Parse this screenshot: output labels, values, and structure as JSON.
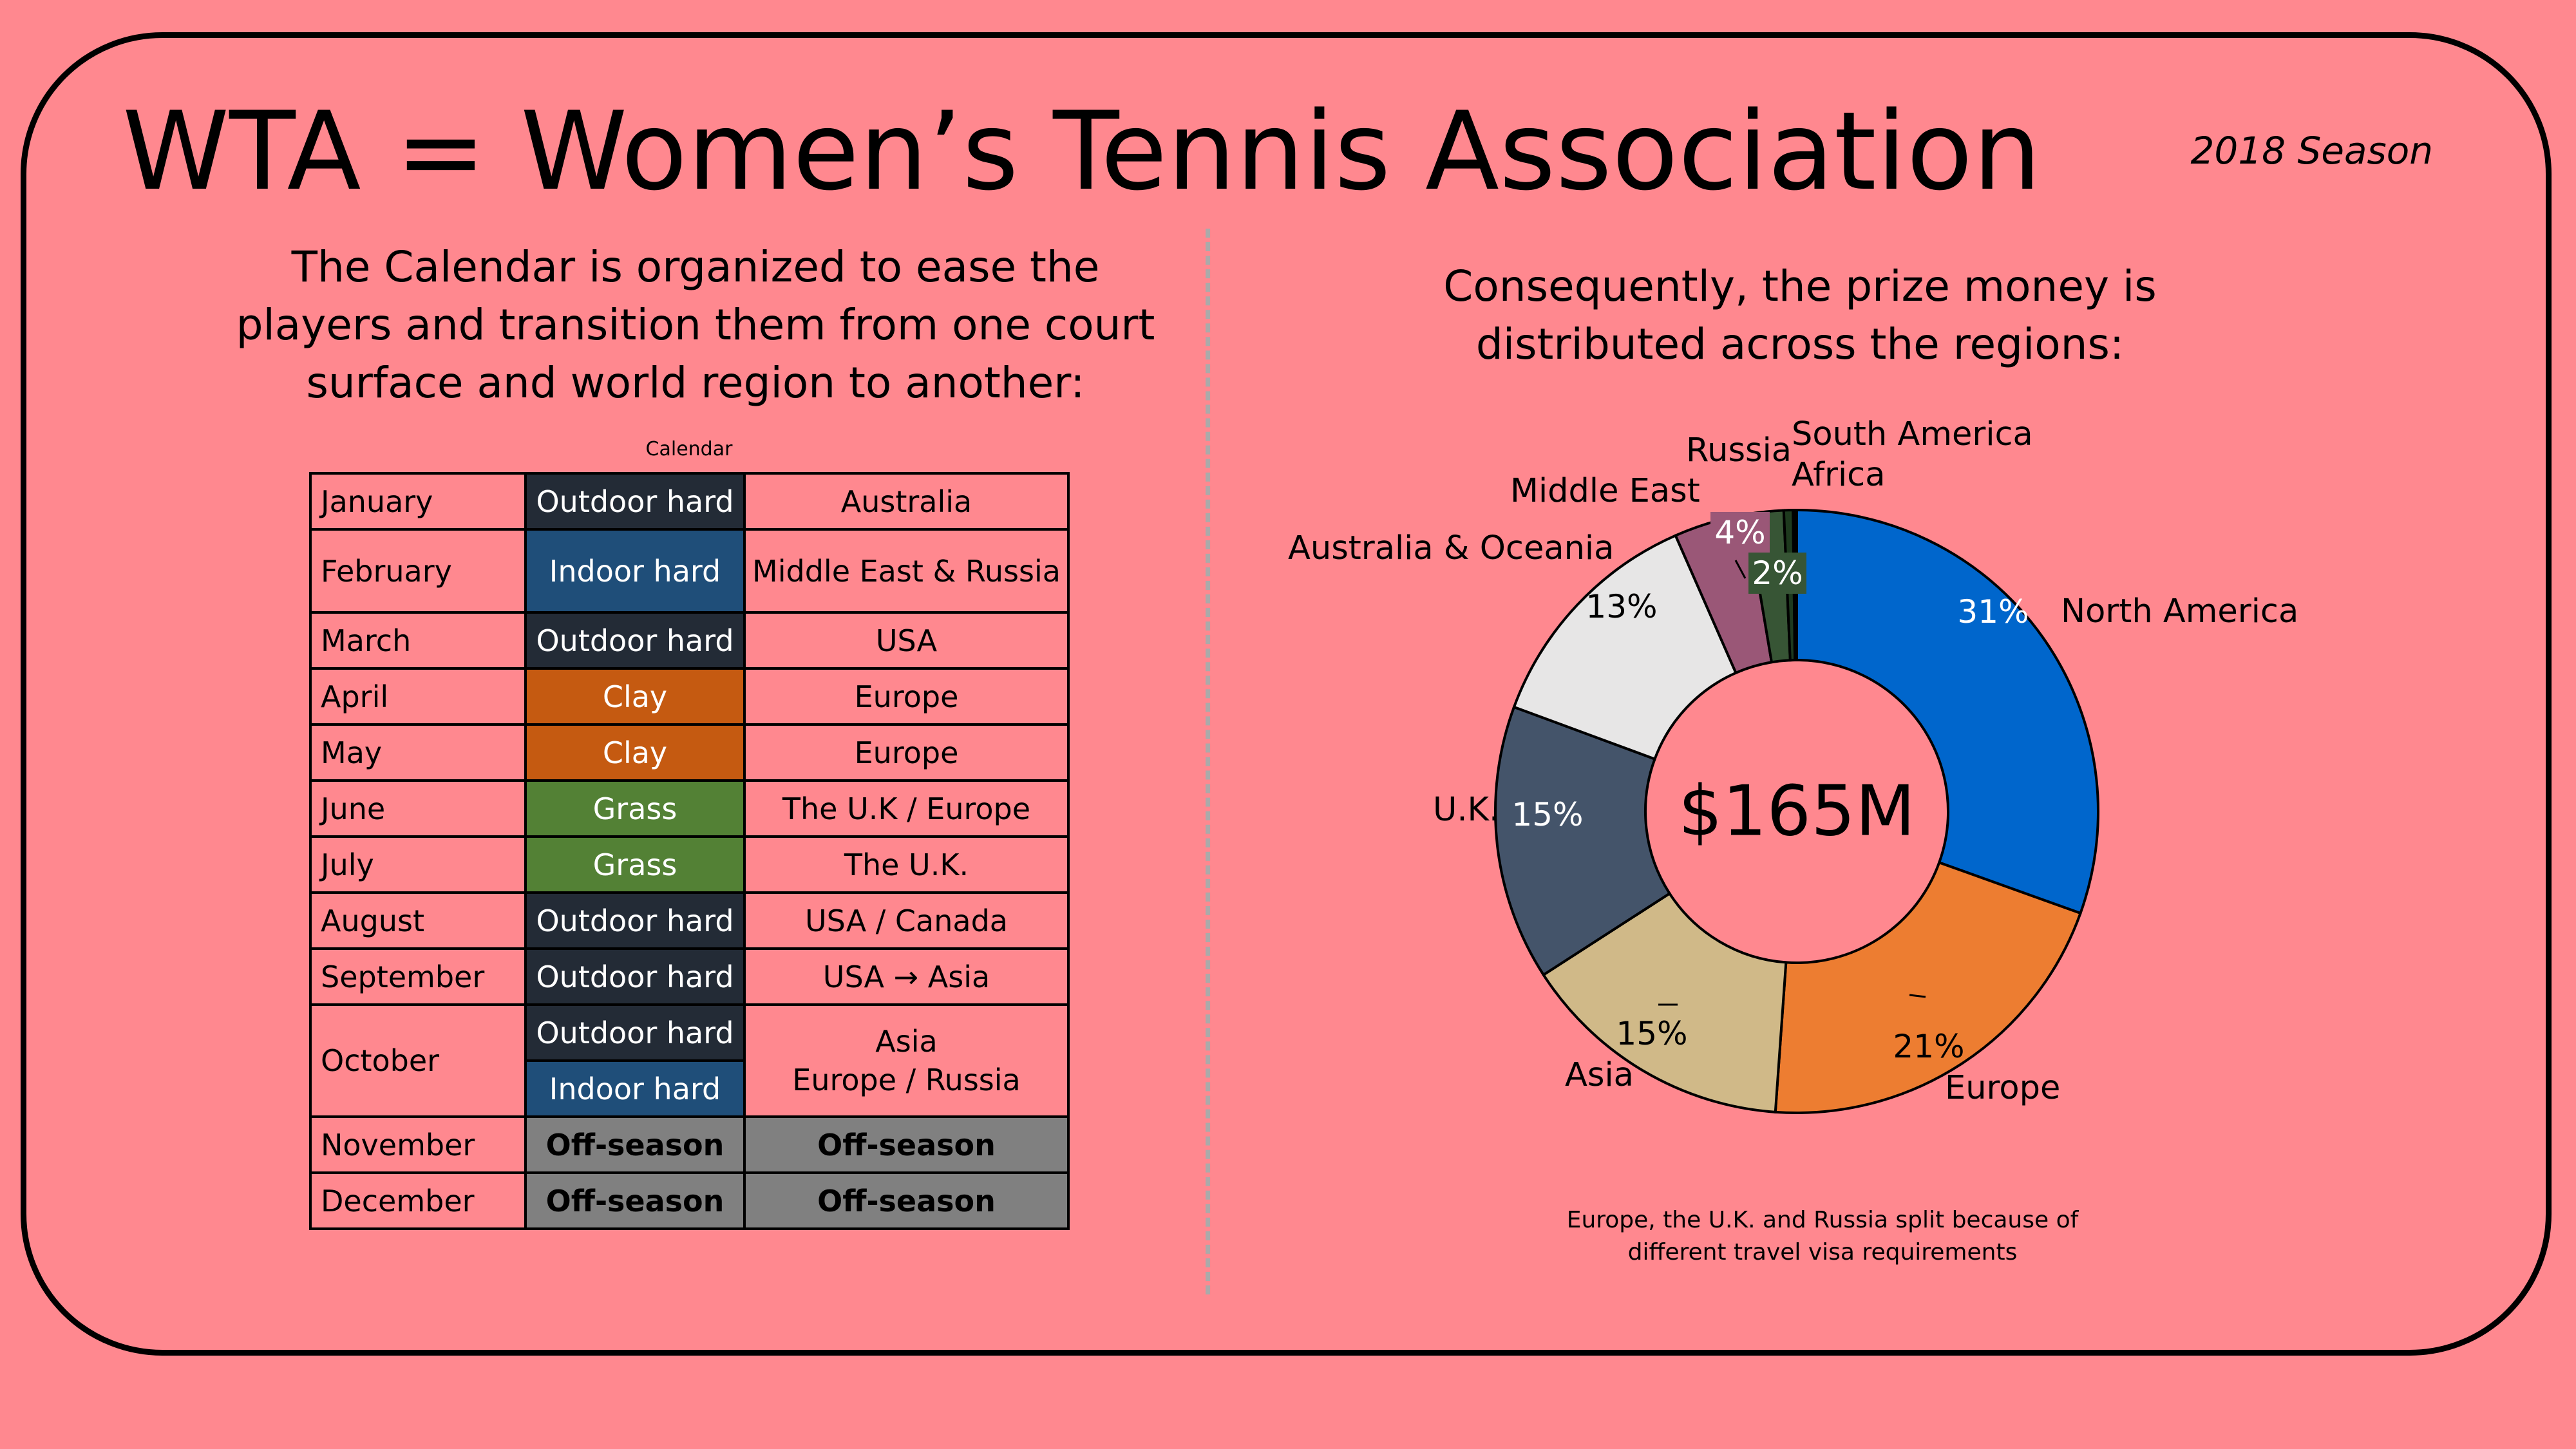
{
  "header": {
    "title": "WTA = Women’s Tennis Association",
    "season": "2018 Season"
  },
  "left": {
    "intro": "The Calendar is organized to ease the players and transition them from one court surface and world region to another:",
    "caption": "Calendar"
  },
  "calendar": {
    "rows": [
      {
        "month": "January",
        "surfaces": [
          {
            "text": "Outdoor hard",
            "color": "#232B36"
          }
        ],
        "region": "Australia"
      },
      {
        "month": "February",
        "surfaces": [
          {
            "text": "Indoor hard",
            "color": "#1F4E79"
          }
        ],
        "region": "Middle East & Russia"
      },
      {
        "month": "March",
        "surfaces": [
          {
            "text": "Outdoor hard",
            "color": "#232B36"
          }
        ],
        "region": "USA"
      },
      {
        "month": "April",
        "surfaces": [
          {
            "text": "Clay",
            "color": "#C55A11"
          }
        ],
        "region": "Europe"
      },
      {
        "month": "May",
        "surfaces": [
          {
            "text": "Clay",
            "color": "#C55A11"
          }
        ],
        "region": "Europe"
      },
      {
        "month": "June",
        "surfaces": [
          {
            "text": "Grass",
            "color": "#538135"
          }
        ],
        "region": "The U.K / Europe"
      },
      {
        "month": "July",
        "surfaces": [
          {
            "text": "Grass",
            "color": "#538135"
          }
        ],
        "region": "The U.K."
      },
      {
        "month": "August",
        "surfaces": [
          {
            "text": "Outdoor hard",
            "color": "#232B36"
          }
        ],
        "region": "USA / Canada"
      },
      {
        "month": "September",
        "surfaces": [
          {
            "text": "Outdoor hard",
            "color": "#232B36"
          }
        ],
        "region": "USA → Asia"
      },
      {
        "month": "October",
        "surfaces": [
          {
            "text": "Outdoor hard",
            "color": "#232B36"
          },
          {
            "text": "Indoor hard",
            "color": "#1F4E79"
          }
        ],
        "region_lines": [
          "Asia",
          "Europe / Russia"
        ]
      },
      {
        "month": "November",
        "surfaces": [
          {
            "text": "Off-season",
            "offseason": true
          }
        ],
        "region": "Off-season",
        "offseason": true
      },
      {
        "month": "December",
        "surfaces": [
          {
            "text": "Off-season",
            "offseason": true
          }
        ],
        "region": "Off-season",
        "offseason": true
      }
    ]
  },
  "right": {
    "intro": "Consequently, the prize money is distributed across the regions:",
    "note": "Europe, the U.K. and Russia split because of different  travel visa requirements"
  },
  "chart_data": {
    "type": "pie",
    "center_label": "$165M",
    "slices": [
      {
        "region": "North America",
        "value": 31,
        "label": "31%",
        "color": "#0066CC",
        "label_color": "#FFFFFF"
      },
      {
        "region": "Europe",
        "value": 21,
        "label": "21%",
        "color": "#ED7D31",
        "label_color": "#000000"
      },
      {
        "region": "Asia",
        "value": 15,
        "label": "15%",
        "color": "#D0B988",
        "label_color": "#000000"
      },
      {
        "region": "U.K.",
        "value": 15,
        "label": "15%",
        "color": "#44546A",
        "label_color": "#FFFFFF"
      },
      {
        "region": "Australia & Oceania",
        "value": 13,
        "label": "13%",
        "color": "#E7E6E6",
        "label_color": "#000000"
      },
      {
        "region": "Middle East",
        "value": 4,
        "label": "4%",
        "color": "#9A5777",
        "label_color": "#FFFFFF"
      },
      {
        "region": "Russia",
        "value": 2,
        "label": "2%",
        "color": "#375535",
        "label_color": "#FFFFFF"
      },
      {
        "region": "South America",
        "value": 0.5,
        "label": "",
        "color": "#1E3A1E"
      },
      {
        "region": "Africa",
        "value": 0.2,
        "label": "",
        "color": "#000000"
      }
    ]
  }
}
